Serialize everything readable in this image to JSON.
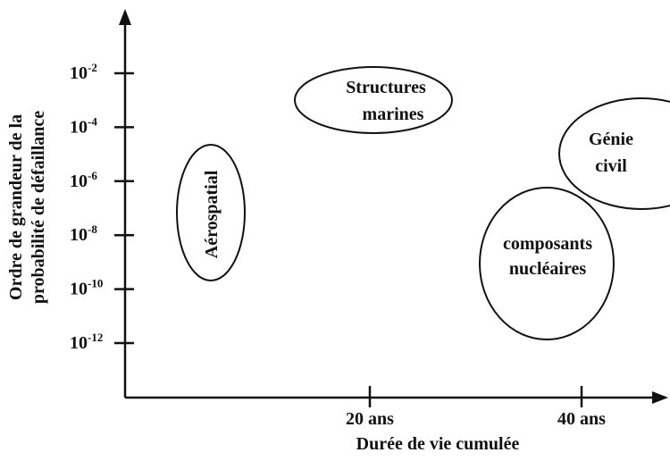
{
  "y_axis": {
    "label_lines": [
      "Ordre de grandeur de la",
      "probabilité de défaillance"
    ],
    "ticks": [
      {
        "base": "10",
        "exponent": "-2"
      },
      {
        "base": "10",
        "exponent": "-4"
      },
      {
        "base": "10",
        "exponent": "-6"
      },
      {
        "base": "10",
        "exponent": "-8"
      },
      {
        "base": "10",
        "exponent": "-10"
      },
      {
        "base": "10",
        "exponent": "-12"
      }
    ]
  },
  "x_axis": {
    "label": "Durée de vie cumulée",
    "ticks": [
      "20 ans",
      "40 ans"
    ]
  },
  "regions": [
    {
      "label_lines": [
        "Aérospatial"
      ]
    },
    {
      "label_lines": [
        "Structures",
        "marines"
      ]
    },
    {
      "label_lines": [
        "Génie",
        "civil"
      ]
    },
    {
      "label_lines": [
        "composants",
        "nucléaires"
      ]
    }
  ]
}
